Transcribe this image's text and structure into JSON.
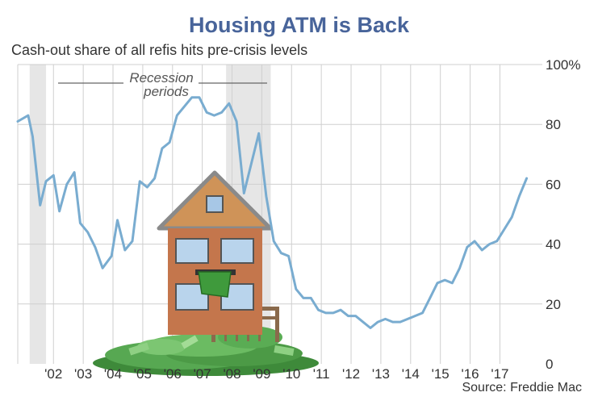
{
  "title": "Housing ATM is Back",
  "subtitle": "Cash-out share of all refis hits pre-crisis levels",
  "source": "Source: Freddie Mac",
  "annotation": {
    "line1": "Recession",
    "line2": "periods"
  },
  "colors": {
    "line": "#79acd0",
    "grid": "#cfcfcf",
    "recession": "#e6e6e6",
    "title": "#48649a"
  },
  "chart_data": {
    "type": "line",
    "title": "Housing ATM is Back",
    "subtitle": "Cash-out share of all refis hits pre-crisis levels",
    "xlabel": "",
    "ylabel": "",
    "xlim": [
      2000.9,
      2018.2
    ],
    "ylim": [
      0,
      100
    ],
    "x_ticks": [
      {
        "value": 2002.1,
        "label": "'02"
      },
      {
        "value": 2003.1,
        "label": "'03"
      },
      {
        "value": 2004.1,
        "label": "'04"
      },
      {
        "value": 2005.1,
        "label": "'05"
      },
      {
        "value": 2006.1,
        "label": "'06"
      },
      {
        "value": 2007.1,
        "label": "'07"
      },
      {
        "value": 2008.1,
        "label": "'08"
      },
      {
        "value": 2009.1,
        "label": "'09"
      },
      {
        "value": 2010.1,
        "label": "'10"
      },
      {
        "value": 2011.1,
        "label": "'11"
      },
      {
        "value": 2012.1,
        "label": "'12"
      },
      {
        "value": 2013.1,
        "label": "'13"
      },
      {
        "value": 2014.1,
        "label": "'14"
      },
      {
        "value": 2015.1,
        "label": "'15"
      },
      {
        "value": 2016.1,
        "label": "'16"
      },
      {
        "value": 2017.1,
        "label": "'17"
      }
    ],
    "y_ticks": [
      {
        "value": 0,
        "label": "0"
      },
      {
        "value": 20,
        "label": "20"
      },
      {
        "value": 40,
        "label": "40"
      },
      {
        "value": 60,
        "label": "60"
      },
      {
        "value": 80,
        "label": "80"
      },
      {
        "value": 100,
        "label": "100%"
      }
    ],
    "recessions": [
      [
        2001.3,
        2001.85
      ],
      [
        2007.9,
        2009.4
      ]
    ],
    "series": [
      {
        "name": "",
        "x": [
          2000.9,
          2001.25,
          2001.4,
          2001.65,
          2001.85,
          2002.1,
          2002.3,
          2002.55,
          2002.8,
          2003.0,
          2003.25,
          2003.5,
          2003.75,
          2004.05,
          2004.25,
          2004.5,
          2004.75,
          2005.0,
          2005.25,
          2005.5,
          2005.75,
          2006.0,
          2006.25,
          2006.5,
          2006.75,
          2007.0,
          2007.25,
          2007.5,
          2007.75,
          2008.0,
          2008.25,
          2008.5,
          2008.75,
          2009.0,
          2009.25,
          2009.5,
          2009.75,
          2010.0,
          2010.25,
          2010.5,
          2010.75,
          2011.0,
          2011.25,
          2011.5,
          2011.75,
          2012.0,
          2012.25,
          2012.5,
          2012.75,
          2013.0,
          2013.25,
          2013.5,
          2013.75,
          2014.0,
          2014.25,
          2014.5,
          2014.75,
          2015.0,
          2015.25,
          2015.5,
          2015.75,
          2016.0,
          2016.25,
          2016.5,
          2016.75,
          2017.0,
          2017.25,
          2017.5,
          2017.75,
          2018.0
        ],
        "values": [
          81,
          83,
          76,
          53,
          61,
          63,
          51,
          60,
          64,
          47,
          44,
          39,
          32,
          36,
          48,
          38,
          41,
          61,
          59,
          62,
          72,
          74,
          83,
          86,
          89,
          89,
          84,
          83,
          84,
          87,
          81,
          57,
          67,
          77,
          56,
          41,
          37,
          36,
          25,
          22,
          22,
          18,
          17,
          17,
          18,
          16,
          16,
          14,
          12,
          14,
          15,
          14,
          14,
          15,
          16,
          17,
          22,
          27,
          28,
          27,
          32,
          39,
          41,
          38,
          40,
          41,
          45,
          49,
          56,
          62
        ]
      }
    ],
    "grid": true,
    "legend": "none"
  }
}
